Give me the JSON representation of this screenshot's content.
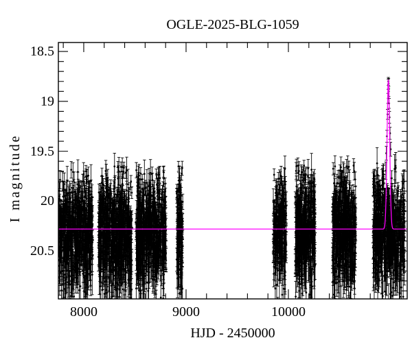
{
  "title": "OGLE-2025-BLG-1059",
  "colors": {
    "background": "#ffffff",
    "data_points": "#000000",
    "error_bars": "#000000",
    "model_curve": "#ff00ff",
    "axis": "#000000"
  },
  "chart_data": {
    "type": "scatter",
    "title": "OGLE-2025-BLG-1059",
    "xlabel": "HJD - 2450000",
    "ylabel": "I magnitude",
    "xlim": [
      7752,
      11161
    ],
    "ylim": [
      20.98,
      18.41
    ],
    "y_axis_inverted": true,
    "grid": false,
    "legend": null,
    "x_major_ticks": [
      8000,
      9000,
      10000
    ],
    "x_tick_labels": [
      "8000",
      "9000",
      "10000"
    ],
    "x_minor_step": 200,
    "y_major_ticks": [
      18.5,
      19,
      19.5,
      20,
      20.5
    ],
    "y_tick_labels": [
      "18.5",
      "19",
      "19.5",
      "20",
      "20.5"
    ],
    "y_minor_step": 0.1,
    "model_curve": {
      "shape": "point-lens-microlensing-spike",
      "baseline_mag": 20.28,
      "peak_mag": 18.78,
      "t0": 10977,
      "sigma_days": 13,
      "color": "#ff00ff"
    },
    "seasons": [
      {
        "label": "season-1",
        "t_start": 7755,
        "t_end": 8087,
        "n_points": 600,
        "mag_mean": 20.3,
        "mag_sigma": 0.27
      },
      {
        "label": "season-2",
        "t_start": 8141,
        "t_end": 8470,
        "n_points": 620,
        "mag_mean": 20.3,
        "mag_sigma": 0.27
      },
      {
        "label": "season-3",
        "t_start": 8510,
        "t_end": 8805,
        "n_points": 560,
        "mag_mean": 20.3,
        "mag_sigma": 0.27
      },
      {
        "label": "season-4",
        "t_start": 8908,
        "t_end": 8968,
        "n_points": 150,
        "mag_mean": 20.3,
        "mag_sigma": 0.27
      },
      {
        "label": "season-5",
        "t_start": 9852,
        "t_end": 9980,
        "n_points": 210,
        "mag_mean": 20.3,
        "mag_sigma": 0.27
      },
      {
        "label": "season-6",
        "t_start": 10067,
        "t_end": 10262,
        "n_points": 420,
        "mag_mean": 20.3,
        "mag_sigma": 0.27
      },
      {
        "label": "season-7",
        "t_start": 10430,
        "t_end": 10658,
        "n_points": 480,
        "mag_mean": 20.3,
        "mag_sigma": 0.27
      },
      {
        "label": "season-8",
        "t_start": 10826,
        "t_end": 11134,
        "n_points": 580,
        "mag_mean": 20.3,
        "mag_sigma": 0.27
      }
    ],
    "event_points": [
      {
        "t": 10957,
        "mag": 19.52,
        "err": 0.07
      },
      {
        "t": 10963,
        "mag": 19.35,
        "err": 0.06
      },
      {
        "t": 10969,
        "mag": 19.13,
        "err": 0.05
      },
      {
        "t": 10973,
        "mag": 18.97,
        "err": 0.05
      },
      {
        "t": 10976,
        "mag": 18.83,
        "err": 0.05
      },
      {
        "t": 10977,
        "mag": 18.8,
        "err": 0.04
      },
      {
        "t": 10979,
        "mag": 18.82,
        "err": 0.05
      },
      {
        "t": 10981,
        "mag": 18.9,
        "err": 0.05
      },
      {
        "t": 10984,
        "mag": 19.02,
        "err": 0.05
      },
      {
        "t": 10988,
        "mag": 19.16,
        "err": 0.06
      },
      {
        "t": 10993,
        "mag": 19.32,
        "err": 0.06
      },
      {
        "t": 10999,
        "mag": 19.48,
        "err": 0.07
      }
    ],
    "outlier_points": [
      {
        "t": 8945,
        "mag": 20.93,
        "err": 0.09
      }
    ],
    "random_seed": 42
  }
}
